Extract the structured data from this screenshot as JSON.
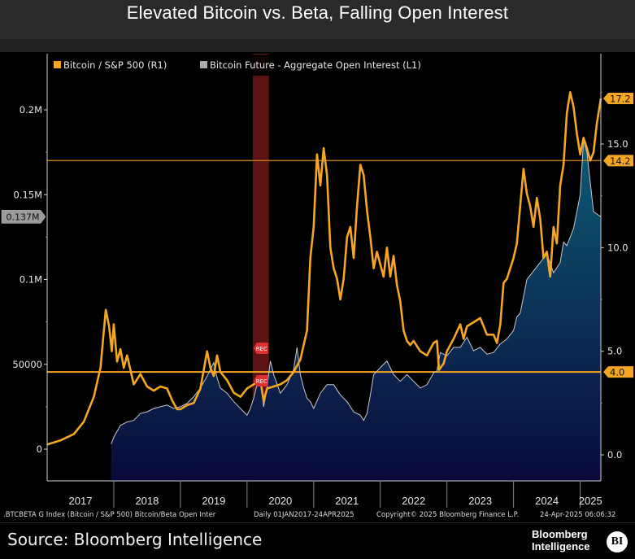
{
  "title": "Elevated Bitcoin vs. Beta, Falling Open Interest",
  "colors": {
    "btc_line": "#f5a623",
    "oi_line": "#c8c8c8",
    "oi_fill_top": "#0d5a74",
    "oi_fill_bottom": "#0a0a3a",
    "hline_upper": "#b87418",
    "hline_lower": "#f5a623",
    "recession": "#7a1a1a",
    "rec_marker": "#e03030",
    "axis": "#d0d0d0"
  },
  "footer": {
    "index": ".BTCBETA G Index (Bitcoin / S&P 500) Bitcoin/Beta Open Inter",
    "range": "Daily 01JAN2017-24APR2025",
    "copyright": "Copyright© 2025 Bloomberg Finance L.P.",
    "timestamp": "24-Apr-2025 06:06:32"
  },
  "source": "Source: Bloomberg Intelligence",
  "logo": {
    "line1": "Bloomberg",
    "line2": "Intelligence",
    "badge": "BI"
  },
  "chart_data": {
    "type": "line",
    "title": "Elevated Bitcoin vs. Beta, Falling Open Interest",
    "xlabel": "",
    "x_ticks": [
      "2017",
      "2018",
      "2019",
      "2020",
      "2021",
      "2022",
      "2023",
      "2024",
      "2025"
    ],
    "x_range": [
      "2017-01-01",
      "2025-04-24"
    ],
    "legend": {
      "placement": "top-left",
      "entries": [
        "Bitcoin / S&P 500  (R1)",
        "Bitcoin Future - Aggregate Open Interest (L1)"
      ]
    },
    "left_axis": {
      "label": "Open Interest",
      "ticks": [
        "0",
        "50000",
        "0.1M",
        "0.15M",
        "0.2M"
      ],
      "tick_values": [
        0,
        50000,
        100000,
        150000,
        200000
      ],
      "range": [
        -3500,
        222000
      ],
      "last_value_label": "0.137M",
      "last_value": 137000
    },
    "right_axis": {
      "label": "Bitcoin / S&P 500",
      "ticks": [
        "0.0",
        "5.0",
        "10.0",
        "15.0"
      ],
      "tick_values": [
        0,
        5,
        10,
        15
      ],
      "range": [
        -0.3,
        18.5
      ],
      "last_value_label": "17.2",
      "last_value": 17.2
    },
    "horizontal_lines": [
      {
        "axis": "right",
        "value": 14.2,
        "label": "14.2"
      },
      {
        "axis": "right",
        "value": 4.0,
        "label": "4.0"
      }
    ],
    "recession_shading": {
      "start": "2020-02-01",
      "end": "2020-04-30",
      "label": "REC"
    },
    "series": [
      {
        "name": "Bitcoin / S&P 500 (R1)",
        "axis": "right",
        "x": [
          2017.0,
          2017.2,
          2017.4,
          2017.55,
          2017.7,
          2017.8,
          2017.88,
          2017.93,
          2017.97,
          2018.0,
          2018.05,
          2018.1,
          2018.15,
          2018.2,
          2018.3,
          2018.4,
          2018.5,
          2018.6,
          2018.7,
          2018.8,
          2018.88,
          2018.95,
          2019.0,
          2019.1,
          2019.2,
          2019.3,
          2019.4,
          2019.45,
          2019.5,
          2019.55,
          2019.6,
          2019.7,
          2019.8,
          2019.9,
          2020.0,
          2020.1,
          2020.2,
          2020.25,
          2020.3,
          2020.4,
          2020.5,
          2020.6,
          2020.7,
          2020.8,
          2020.9,
          2020.95,
          2021.0,
          2021.05,
          2021.1,
          2021.15,
          2021.2,
          2021.25,
          2021.3,
          2021.35,
          2021.4,
          2021.45,
          2021.5,
          2021.55,
          2021.6,
          2021.65,
          2021.7,
          2021.75,
          2021.8,
          2021.85,
          2021.9,
          2021.95,
          2022.0,
          2022.05,
          2022.1,
          2022.15,
          2022.2,
          2022.25,
          2022.3,
          2022.35,
          2022.4,
          2022.45,
          2022.5,
          2022.6,
          2022.7,
          2022.8,
          2022.85,
          2022.88,
          2022.95,
          2023.0,
          2023.1,
          2023.2,
          2023.25,
          2023.3,
          2023.4,
          2023.5,
          2023.6,
          2023.7,
          2023.75,
          2023.8,
          2023.85,
          2023.9,
          2024.0,
          2024.05,
          2024.1,
          2024.15,
          2024.2,
          2024.25,
          2024.3,
          2024.35,
          2024.4,
          2024.45,
          2024.5,
          2024.55,
          2024.6,
          2024.65,
          2024.7,
          2024.75,
          2024.8,
          2024.85,
          2024.9,
          2024.95,
          2025.0,
          2025.05,
          2025.1,
          2025.15,
          2025.2,
          2025.25,
          2025.31
        ],
        "y": [
          0.5,
          0.7,
          1.0,
          1.6,
          2.8,
          4.2,
          7.0,
          6.2,
          5.0,
          6.3,
          4.5,
          5.1,
          4.2,
          4.8,
          3.4,
          3.9,
          3.3,
          3.1,
          3.3,
          3.2,
          2.6,
          2.2,
          2.2,
          2.4,
          2.5,
          3.2,
          5.0,
          4.2,
          3.8,
          4.8,
          4.0,
          3.6,
          3.0,
          2.8,
          3.2,
          3.4,
          3.6,
          2.6,
          3.2,
          3.3,
          3.4,
          3.6,
          4.0,
          4.6,
          6.0,
          9.5,
          11.0,
          14.5,
          13.0,
          14.8,
          13.5,
          10.0,
          9.0,
          8.5,
          7.5,
          8.5,
          10.5,
          11.0,
          9.5,
          12.0,
          14.0,
          13.5,
          11.8,
          10.5,
          9.0,
          9.8,
          9.2,
          8.6,
          10.0,
          8.6,
          9.6,
          8.2,
          7.4,
          6.0,
          5.5,
          5.3,
          5.5,
          5.0,
          4.8,
          5.4,
          5.5,
          4.1,
          4.4,
          5.0,
          5.6,
          6.3,
          5.6,
          6.2,
          6.4,
          6.6,
          5.8,
          5.8,
          5.4,
          6.3,
          8.3,
          8.5,
          9.5,
          10.2,
          12.0,
          13.8,
          12.6,
          12.0,
          11.0,
          12.4,
          11.4,
          9.5,
          9.8,
          8.6,
          11.0,
          10.2,
          13.0,
          14.0,
          16.5,
          17.5,
          16.8,
          15.5,
          14.5,
          15.3,
          14.8,
          14.2,
          14.6,
          16.0,
          17.2
        ]
      },
      {
        "name": "Bitcoin Future - Aggregate Open Interest (L1)",
        "axis": "left",
        "x": [
          2017.96,
          2018.0,
          2018.1,
          2018.2,
          2018.3,
          2018.4,
          2018.5,
          2018.6,
          2018.7,
          2018.8,
          2018.9,
          2019.0,
          2019.1,
          2019.2,
          2019.3,
          2019.4,
          2019.5,
          2019.55,
          2019.6,
          2019.7,
          2019.8,
          2019.9,
          2020.0,
          2020.05,
          2020.1,
          2020.15,
          2020.2,
          2020.25,
          2020.3,
          2020.35,
          2020.4,
          2020.5,
          2020.6,
          2020.7,
          2020.75,
          2020.8,
          2020.85,
          2020.9,
          2020.95,
          2021.0,
          2021.1,
          2021.2,
          2021.3,
          2021.4,
          2021.5,
          2021.55,
          2021.6,
          2021.7,
          2021.75,
          2021.8,
          2021.85,
          2021.9,
          2022.0,
          2022.1,
          2022.2,
          2022.3,
          2022.4,
          2022.5,
          2022.6,
          2022.7,
          2022.8,
          2022.85,
          2022.9,
          2023.0,
          2023.1,
          2023.2,
          2023.3,
          2023.4,
          2023.5,
          2023.6,
          2023.7,
          2023.8,
          2023.9,
          2024.0,
          2024.05,
          2024.1,
          2024.15,
          2024.2,
          2024.3,
          2024.4,
          2024.5,
          2024.6,
          2024.7,
          2024.75,
          2024.8,
          2024.9,
          2025.0,
          2025.05,
          2025.1,
          2025.2,
          2025.31
        ],
        "y": [
          3000,
          7000,
          14000,
          16000,
          17000,
          21000,
          22000,
          24000,
          25000,
          26000,
          24000,
          25000,
          27000,
          31000,
          36000,
          43000,
          51000,
          42000,
          36000,
          33000,
          28000,
          24000,
          20000,
          24000,
          30000,
          38000,
          42000,
          25000,
          36000,
          52000,
          44000,
          33000,
          38000,
          47000,
          60000,
          44000,
          36000,
          30000,
          28000,
          24000,
          33000,
          38000,
          38000,
          32000,
          28000,
          25000,
          22000,
          20000,
          17000,
          21000,
          32000,
          44000,
          48000,
          52000,
          44000,
          40000,
          44000,
          40000,
          36000,
          38000,
          45000,
          46000,
          57000,
          55000,
          60000,
          60000,
          66000,
          58000,
          60000,
          56000,
          57000,
          62000,
          65000,
          70000,
          78000,
          80000,
          90000,
          100000,
          105000,
          110000,
          115000,
          104000,
          110000,
          122000,
          120000,
          130000,
          150000,
          182000,
          175000,
          140000,
          137000
        ]
      }
    ]
  }
}
